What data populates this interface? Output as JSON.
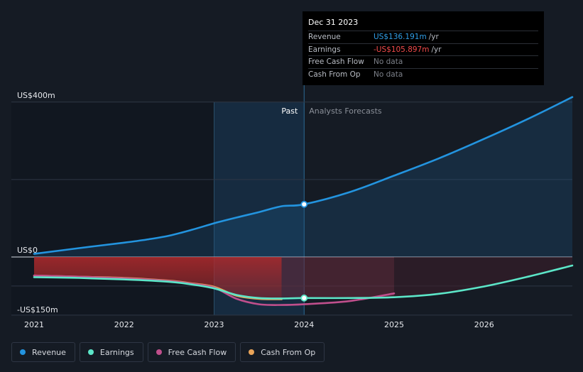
{
  "colors": {
    "background": "#151b24",
    "revenue": "#2394df",
    "earnings": "#5ce6c8",
    "free_cash_flow": "#c04f8c",
    "cash_from_op": "#e9a459",
    "negative_fill": "#b12a2c",
    "grid": "#2f3745"
  },
  "tooltip": {
    "date": "Dec 31 2023",
    "rows": [
      {
        "label": "Revenue",
        "value": "US$136.191m",
        "unit": "/yr",
        "color": "#2f9de6"
      },
      {
        "label": "Earnings",
        "value": "-US$105.897m",
        "unit": "/yr",
        "color": "#f34b4b"
      },
      {
        "label": "Free Cash Flow",
        "value": "No data",
        "unit": "",
        "color": "#7c8089"
      },
      {
        "label": "Cash From Op",
        "value": "No data",
        "unit": "",
        "color": "#7c8089"
      }
    ]
  },
  "legend": [
    {
      "label": "Revenue",
      "color": "#2394df"
    },
    {
      "label": "Earnings",
      "color": "#5ce6c8"
    },
    {
      "label": "Free Cash Flow",
      "color": "#c04f8c"
    },
    {
      "label": "Cash From Op",
      "color": "#e9a459"
    }
  ],
  "chart_data": {
    "type": "line",
    "title": "",
    "ylabel": "",
    "xlabel": "",
    "y_tick_labels": [
      {
        "value": 400,
        "label": "US$400m"
      },
      {
        "value": 0,
        "label": "US$0"
      },
      {
        "value": -150,
        "label": "-US$150m"
      }
    ],
    "ylim": [
      -150,
      400
    ],
    "xlim": [
      2021.0,
      2026.98
    ],
    "x_ticks": [
      2021,
      2022,
      2023,
      2024,
      2025,
      2026
    ],
    "x_tick_labels": [
      "2021",
      "2022",
      "2023",
      "2024",
      "2025",
      "2026"
    ],
    "past_region": [
      2023.0,
      2024.0
    ],
    "past_label": "Past",
    "forecast_label": "Analysts Forecasts",
    "highlight_x": 2024.0,
    "series": [
      {
        "name": "Revenue",
        "key": "revenue",
        "dashed": false,
        "x": [
          2021.0,
          2021.5,
          2022.0,
          2022.25,
          2022.5,
          2022.75,
          2023.0,
          2023.25,
          2023.5,
          2023.75,
          2024.0,
          2024.5,
          2025.0,
          2025.5,
          2026.0,
          2026.5,
          2026.98
        ],
        "y": [
          8,
          23,
          37,
          45,
          55,
          70,
          87,
          102,
          116,
          131,
          136,
          167,
          210,
          255,
          305,
          358,
          413
        ]
      },
      {
        "name": "Earnings",
        "key": "earnings",
        "dashed": false,
        "x": [
          2021.0,
          2021.5,
          2022.0,
          2022.5,
          2022.75,
          2023.0,
          2023.25,
          2023.5,
          2023.75,
          2024.0,
          2024.5,
          2025.0,
          2025.5,
          2026.0,
          2026.5,
          2026.98
        ],
        "y": [
          -52,
          -54,
          -58,
          -64,
          -71,
          -81,
          -98,
          -106,
          -107,
          -106,
          -106,
          -104,
          -95,
          -76,
          -50,
          -22
        ]
      },
      {
        "name": "Free Cash Flow",
        "key": "free_cash_flow",
        "dashed": false,
        "x": [
          2021.0,
          2021.5,
          2022.0,
          2022.5,
          2022.75,
          2023.0,
          2023.25,
          2023.5,
          2023.75,
          2024.0,
          2024.5,
          2025.0
        ],
        "y": [
          -48,
          -51,
          -55,
          -62,
          -69,
          -79,
          -108,
          -122,
          -124,
          -122,
          -114,
          -94
        ]
      },
      {
        "name": "Cash From Op",
        "key": "cash_from_op",
        "dashed": false,
        "x": [
          2021.0,
          2021.5,
          2022.0,
          2022.5,
          2022.75,
          2023.0,
          2023.25,
          2023.5,
          2023.75
        ],
        "y": [
          -48,
          -51,
          -54,
          -61,
          -68,
          -77,
          -100,
          -108,
          -109
        ]
      }
    ]
  }
}
